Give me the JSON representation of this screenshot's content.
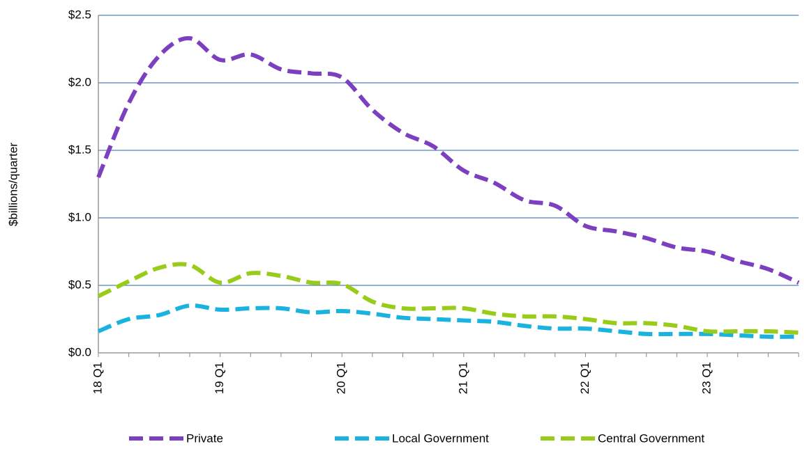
{
  "chart_data": {
    "type": "line",
    "y_label": "$billions/quarter",
    "categories": [
      "18 Q1",
      null,
      null,
      null,
      "19 Q1",
      null,
      null,
      null,
      "20 Q1",
      null,
      null,
      null,
      "21 Q1",
      null,
      null,
      null,
      "22 Q1",
      null,
      null,
      null,
      "23 Q1",
      null,
      null,
      null
    ],
    "series": [
      {
        "name": "Private",
        "color": "#7b3fbf",
        "values": [
          1.3,
          1.85,
          2.2,
          2.33,
          2.17,
          2.21,
          2.1,
          2.07,
          2.04,
          1.8,
          1.63,
          1.53,
          1.35,
          1.26,
          1.13,
          1.09,
          0.94,
          0.9,
          0.85,
          0.78,
          0.75,
          0.68,
          0.62,
          0.52
        ]
      },
      {
        "name": "Local Government",
        "color": "#1ab3e0",
        "values": [
          0.16,
          0.25,
          0.28,
          0.35,
          0.32,
          0.33,
          0.33,
          0.3,
          0.31,
          0.29,
          0.26,
          0.25,
          0.24,
          0.23,
          0.2,
          0.18,
          0.18,
          0.16,
          0.14,
          0.14,
          0.14,
          0.13,
          0.12,
          0.12
        ]
      },
      {
        "name": "Central Government",
        "color": "#99cc1a",
        "values": [
          0.42,
          0.53,
          0.63,
          0.65,
          0.52,
          0.59,
          0.57,
          0.52,
          0.51,
          0.38,
          0.33,
          0.33,
          0.33,
          0.29,
          0.27,
          0.27,
          0.25,
          0.22,
          0.22,
          0.2,
          0.16,
          0.16,
          0.16,
          0.15
        ]
      }
    ],
    "ylim": [
      0,
      2.5
    ],
    "yticks": [
      {
        "value": 0,
        "label": "$0.0"
      },
      {
        "value": 0.5,
        "label": "$0.5"
      },
      {
        "value": 1,
        "label": "$1.0"
      },
      {
        "value": 1.5,
        "label": "$1.5"
      },
      {
        "value": 2,
        "label": "$2.0"
      },
      {
        "value": 2.5,
        "label": "$2.5"
      }
    ],
    "grid": true,
    "legend": "bottom"
  }
}
